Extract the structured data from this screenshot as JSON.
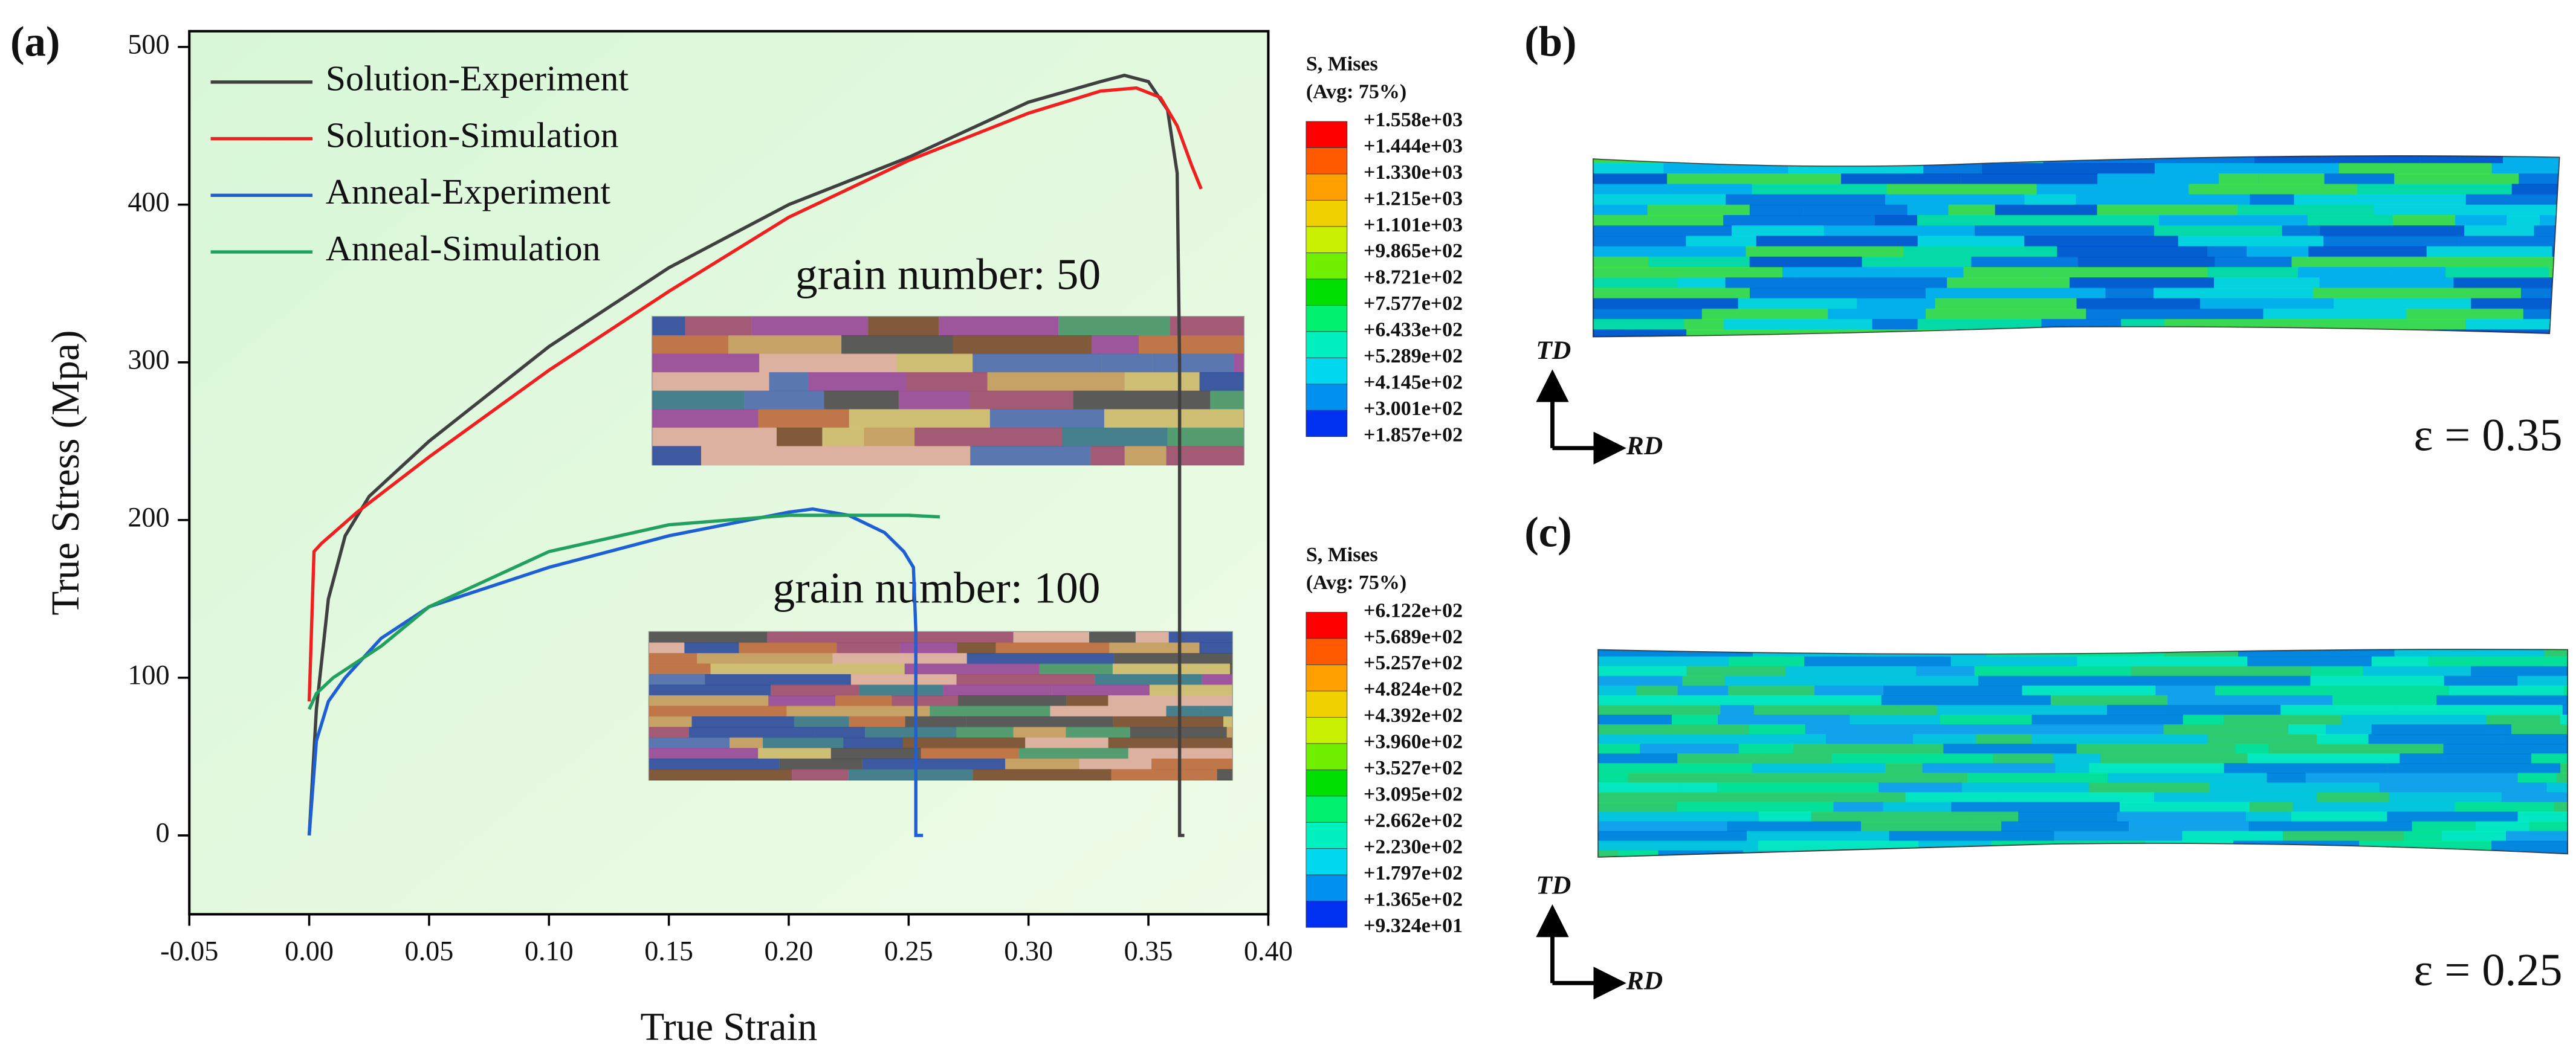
{
  "chart_data": {
    "type": "line",
    "xlabel": "True Strain",
    "ylabel": "True Stress (Mpa)",
    "panel_label": "(a)",
    "xlim": [
      -0.05,
      0.4
    ],
    "ylim": [
      -50,
      510
    ],
    "xticks": [
      {
        "value": -0.05,
        "label": "-0.05"
      },
      {
        "value": 0,
        "label": "0.00"
      },
      {
        "value": 0.05,
        "label": "0.05"
      },
      {
        "value": 0.1,
        "label": "0.10"
      },
      {
        "value": 0.15,
        "label": "0.15"
      },
      {
        "value": 0.2,
        "label": "0.20"
      },
      {
        "value": 0.25,
        "label": "0.25"
      },
      {
        "value": 0.3,
        "label": "0.30"
      },
      {
        "value": 0.35,
        "label": "0.35"
      },
      {
        "value": 0.4,
        "label": "0.40"
      }
    ],
    "yticks": [
      0,
      100,
      200,
      300,
      400,
      500
    ],
    "legend": "upper left",
    "series": [
      {
        "name": "Solution-Experiment",
        "color": "#404040",
        "x": [
          0,
          0.003,
          0.008,
          0.015,
          0.025,
          0.05,
          0.1,
          0.15,
          0.2,
          0.25,
          0.3,
          0.33,
          0.34,
          0.35,
          0.358,
          0.362,
          0.363,
          0.363,
          0.365
        ],
        "values": [
          0,
          80,
          150,
          190,
          215,
          250,
          310,
          360,
          400,
          430,
          465,
          478,
          482,
          478,
          460,
          420,
          300,
          0,
          0
        ]
      },
      {
        "name": "Solution-Simulation",
        "color": "#f02020",
        "x": [
          0,
          0.002,
          0.005,
          0.02,
          0.05,
          0.1,
          0.15,
          0.2,
          0.25,
          0.3,
          0.33,
          0.345,
          0.355,
          0.362,
          0.368,
          0.372
        ],
        "values": [
          85,
          180,
          185,
          205,
          240,
          295,
          345,
          392,
          428,
          458,
          472,
          474,
          468,
          450,
          425,
          410
        ]
      },
      {
        "name": "Anneal-Experiment",
        "color": "#1f5fd6",
        "x": [
          0,
          0.003,
          0.008,
          0.015,
          0.03,
          0.05,
          0.1,
          0.15,
          0.2,
          0.21,
          0.225,
          0.24,
          0.248,
          0.252,
          0.253,
          0.253,
          0.256
        ],
        "values": [
          0,
          60,
          85,
          100,
          125,
          145,
          170,
          190,
          205,
          207,
          203,
          192,
          180,
          170,
          130,
          0,
          0
        ]
      },
      {
        "name": "Anneal-Simulation",
        "color": "#22a060",
        "x": [
          0,
          0.003,
          0.01,
          0.03,
          0.05,
          0.1,
          0.15,
          0.2,
          0.25,
          0.263
        ],
        "values": [
          80,
          90,
          100,
          120,
          145,
          180,
          197,
          203,
          203,
          202
        ]
      }
    ],
    "annotations": [
      "grain number: 50",
      "grain number: 100"
    ]
  },
  "contour_plots": [
    {
      "panel_label": "(b)",
      "legend_title": "S, Mises",
      "legend_subtitle": "(Avg: 75%)",
      "legend_values": [
        "+1.558e+03",
        "+1.444e+03",
        "+1.330e+03",
        "+1.215e+03",
        "+1.101e+03",
        "+9.865e+02",
        "+8.721e+02",
        "+7.577e+02",
        "+6.433e+02",
        "+5.289e+02",
        "+4.145e+02",
        "+3.001e+02",
        "+1.857e+02"
      ],
      "strain": "ε = 0.35",
      "td": "TD",
      "rd": "RD"
    },
    {
      "panel_label": "(c)",
      "legend_title": "S, Mises",
      "legend_subtitle": "(Avg: 75%)",
      "legend_values": [
        "+6.122e+02",
        "+5.689e+02",
        "+5.257e+02",
        "+4.824e+02",
        "+4.392e+02",
        "+3.960e+02",
        "+3.527e+02",
        "+3.095e+02",
        "+2.662e+02",
        "+2.230e+02",
        "+1.797e+02",
        "+1.365e+02",
        "+9.324e+01"
      ],
      "strain": "ε = 0.25",
      "td": "TD",
      "rd": "RD"
    }
  ],
  "legend_colors": [
    "#ff0000",
    "#ff5a00",
    "#ffa000",
    "#f0d000",
    "#c8f000",
    "#70f000",
    "#00e000",
    "#00f070",
    "#00f0c0",
    "#00d8f0",
    "#0090f0",
    "#0030f0"
  ]
}
